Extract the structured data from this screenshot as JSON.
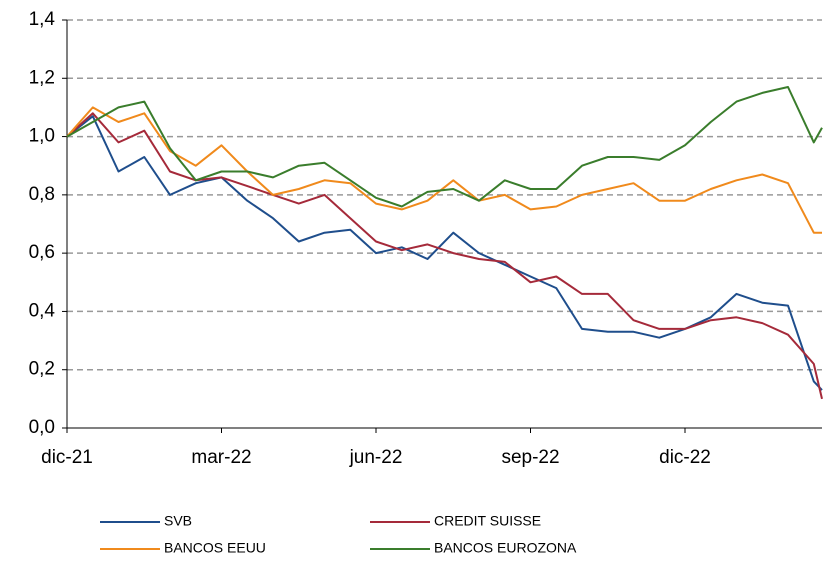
{
  "chart_data": {
    "type": "line",
    "x": [
      0,
      0.5,
      1,
      1.5,
      2,
      2.5,
      3,
      3.5,
      4,
      4.5,
      5,
      5.5,
      6,
      6.5,
      7,
      7.5,
      8,
      8.5,
      9,
      9.5,
      10,
      10.5,
      11,
      11.5,
      12,
      12.5,
      13,
      13.5,
      14,
      14.5,
      14.66
    ],
    "xlim": [
      0,
      14.66
    ],
    "xticks": [
      {
        "value": 0,
        "label": "dic-21"
      },
      {
        "value": 3,
        "label": "mar-22"
      },
      {
        "value": 6,
        "label": "jun-22"
      },
      {
        "value": 9,
        "label": "sep-22"
      },
      {
        "value": 12,
        "label": "dic-22"
      }
    ],
    "ylim": [
      0,
      1.4
    ],
    "yticks": [
      {
        "value": 0,
        "label": "0,0"
      },
      {
        "value": 0.2,
        "label": "0,2"
      },
      {
        "value": 0.4,
        "label": "0,4"
      },
      {
        "value": 0.6,
        "label": "0,6"
      },
      {
        "value": 0.8,
        "label": "0,8"
      },
      {
        "value": 1.0,
        "label": "1,0"
      },
      {
        "value": 1.2,
        "label": "1,2"
      },
      {
        "value": 1.4,
        "label": "1,4"
      }
    ],
    "grid": true,
    "legend": "bottom",
    "series": [
      {
        "name": "SVB",
        "color": "#1f4e8c",
        "values": [
          1.0,
          1.07,
          0.88,
          0.93,
          0.8,
          0.84,
          0.86,
          0.78,
          0.72,
          0.64,
          0.67,
          0.68,
          0.6,
          0.62,
          0.58,
          0.67,
          0.6,
          0.56,
          0.52,
          0.48,
          0.34,
          0.33,
          0.33,
          0.31,
          0.34,
          0.38,
          0.46,
          0.43,
          0.42,
          0.16,
          0.13
        ]
      },
      {
        "name": "CREDIT SUISSE",
        "color": "#a52a3a",
        "values": [
          1.0,
          1.08,
          0.98,
          1.02,
          0.88,
          0.85,
          0.86,
          0.83,
          0.8,
          0.77,
          0.8,
          0.72,
          0.64,
          0.61,
          0.63,
          0.6,
          0.58,
          0.57,
          0.5,
          0.52,
          0.46,
          0.46,
          0.37,
          0.34,
          0.34,
          0.37,
          0.38,
          0.36,
          0.32,
          0.22,
          0.1
        ]
      },
      {
        "name": "BANCOS EEUU",
        "color": "#f08a1c",
        "values": [
          1.0,
          1.1,
          1.05,
          1.08,
          0.95,
          0.9,
          0.97,
          0.88,
          0.8,
          0.82,
          0.85,
          0.84,
          0.77,
          0.75,
          0.78,
          0.85,
          0.78,
          0.8,
          0.75,
          0.76,
          0.8,
          0.82,
          0.84,
          0.78,
          0.78,
          0.82,
          0.85,
          0.87,
          0.84,
          0.67,
          0.67
        ]
      },
      {
        "name": "BANCOS EUROZONA",
        "color": "#3a7d2c",
        "values": [
          1.0,
          1.05,
          1.1,
          1.12,
          0.96,
          0.85,
          0.88,
          0.88,
          0.86,
          0.9,
          0.91,
          0.85,
          0.79,
          0.76,
          0.81,
          0.82,
          0.78,
          0.85,
          0.82,
          0.82,
          0.9,
          0.93,
          0.93,
          0.92,
          0.97,
          1.05,
          1.12,
          1.15,
          1.17,
          0.98,
          1.03
        ]
      }
    ]
  }
}
